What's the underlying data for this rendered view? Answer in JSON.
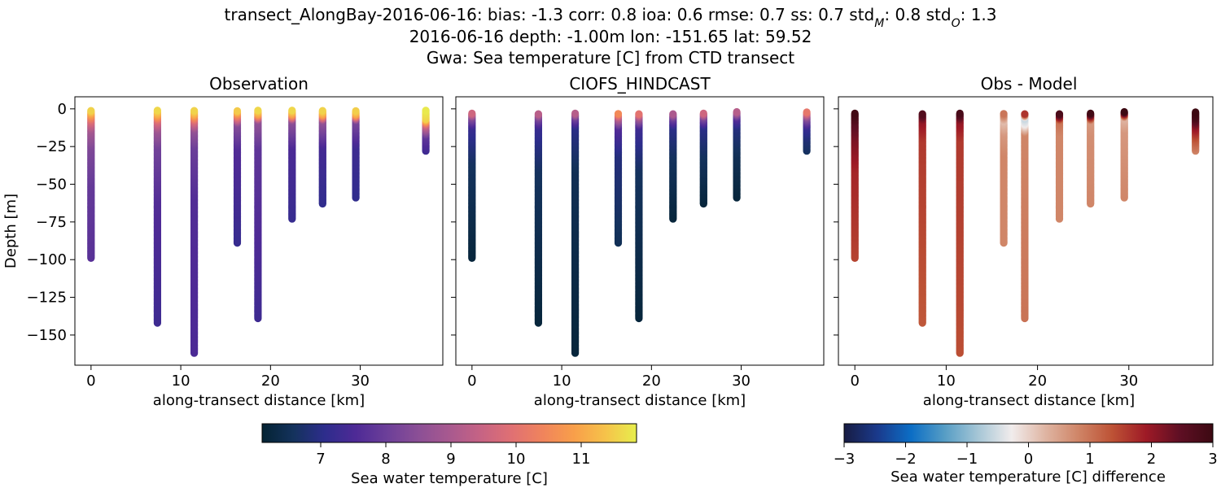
{
  "title": {
    "line1_main": "transect_AlongBay-2016-06-16: bias: -1.3  corr: 0.8  ioa: 0.6  rmse: 0.7  ss: 0.7  std",
    "std_m_sub": "M",
    "line1_mid": ": 0.8  std",
    "std_o_sub": "O",
    "line1_end": ": 1.3",
    "line2": "2016-06-16 depth: -1.00m lon: -151.65 lat: 59.52",
    "line3": "Gwa: Sea temperature [C] from CTD transect"
  },
  "colors": {
    "thermal": [
      "#042333",
      "#14325c",
      "#2d2d8c",
      "#4e2a96",
      "#6c3f99",
      "#8b4f96",
      "#a8598f",
      "#c66384",
      "#e07073",
      "#f0845c",
      "#f89f4a",
      "#f6c24a",
      "#e7ee4d"
    ],
    "balance": [
      "#181c43",
      "#1a3a8c",
      "#0c6ec5",
      "#569dc5",
      "#a6c6d6",
      "#f1ecec",
      "#dfb5a3",
      "#cf8466",
      "#bd5235",
      "#9e1a26",
      "#5f0f24",
      "#3c0912"
    ]
  },
  "chart_data": [
    {
      "type": "scatter",
      "panel": "Observation",
      "title": "Observation",
      "xlabel": "along-transect distance [km]",
      "ylabel": "Depth [m]",
      "xlim": [
        -1.8,
        39.2
      ],
      "ylim": [
        -170,
        8
      ],
      "xticks": [
        0,
        10,
        20,
        30
      ],
      "yticks": [
        0,
        -25,
        -50,
        -75,
        -100,
        -125,
        -150
      ],
      "colormap": "thermal",
      "clim": [
        6.1,
        11.85
      ],
      "profiles": [
        {
          "x": 0.0,
          "top": -1,
          "bottom": -99,
          "profile": [
            [
              -1,
              11.6
            ],
            [
              -4,
              10.8
            ],
            [
              -8,
              9.8
            ],
            [
              -14,
              8.9
            ],
            [
              -25,
              8.3
            ],
            [
              -50,
              7.9
            ],
            [
              -99,
              7.7
            ]
          ]
        },
        {
          "x": 7.4,
          "top": -1,
          "bottom": -142,
          "profile": [
            [
              -1,
              11.6
            ],
            [
              -4,
              11.0
            ],
            [
              -8,
              9.8
            ],
            [
              -14,
              8.8
            ],
            [
              -25,
              8.1
            ],
            [
              -60,
              7.6
            ],
            [
              -142,
              7.3
            ]
          ]
        },
        {
          "x": 11.5,
          "top": -1,
          "bottom": -162,
          "profile": [
            [
              -1,
              11.6
            ],
            [
              -4,
              11.0
            ],
            [
              -8,
              9.8
            ],
            [
              -14,
              8.6
            ],
            [
              -25,
              8.0
            ],
            [
              -60,
              7.6
            ],
            [
              -162,
              7.5
            ]
          ]
        },
        {
          "x": 16.3,
          "top": -1,
          "bottom": -89,
          "profile": [
            [
              -1,
              11.6
            ],
            [
              -4,
              10.5
            ],
            [
              -10,
              8.4
            ],
            [
              -25,
              7.6
            ],
            [
              -89,
              7.2
            ]
          ]
        },
        {
          "x": 18.6,
          "top": -1,
          "bottom": -139,
          "profile": [
            [
              -1,
              11.6
            ],
            [
              -4,
              10.8
            ],
            [
              -8,
              8.6
            ],
            [
              -25,
              7.8
            ],
            [
              -139,
              7.3
            ]
          ]
        },
        {
          "x": 22.4,
          "top": -1,
          "bottom": -73,
          "profile": [
            [
              -1,
              11.6
            ],
            [
              -4,
              10.8
            ],
            [
              -8,
              8.5
            ],
            [
              -25,
              7.5
            ],
            [
              -73,
              7.2
            ]
          ]
        },
        {
          "x": 25.8,
          "top": -1,
          "bottom": -63,
          "profile": [
            [
              -1,
              11.6
            ],
            [
              -4,
              10.9
            ],
            [
              -8,
              8.6
            ],
            [
              -25,
              7.4
            ],
            [
              -63,
              7.1
            ]
          ]
        },
        {
          "x": 29.5,
          "top": -1,
          "bottom": -59,
          "profile": [
            [
              -1,
              11.6
            ],
            [
              -4,
              10.9
            ],
            [
              -8,
              8.2
            ],
            [
              -25,
              7.3
            ],
            [
              -59,
              7.1
            ]
          ]
        },
        {
          "x": 37.3,
          "top": -1,
          "bottom": -28,
          "profile": [
            [
              -1,
              11.8
            ],
            [
              -7,
              11.5
            ],
            [
              -11,
              9.5
            ],
            [
              -18,
              7.8
            ],
            [
              -28,
              7.3
            ]
          ]
        }
      ]
    },
    {
      "type": "scatter",
      "panel": "CIOFS_HINDCAST",
      "title": "CIOFS_HINDCAST",
      "xlabel": "along-transect distance [km]",
      "ylabel": "",
      "xlim": [
        -1.8,
        39.2
      ],
      "ylim": [
        -170,
        8
      ],
      "xticks": [
        0,
        10,
        20,
        30
      ],
      "yticks": [
        0,
        -25,
        -50,
        -75,
        -100,
        -125,
        -150
      ],
      "colormap": "thermal",
      "clim": [
        6.1,
        11.85
      ],
      "profiles": [
        {
          "x": 0.0,
          "top": -3,
          "bottom": -99,
          "profile": [
            [
              -3,
              9.6
            ],
            [
              -6,
              8.3
            ],
            [
              -12,
              7.2
            ],
            [
              -35,
              6.6
            ],
            [
              -99,
              6.2
            ]
          ]
        },
        {
          "x": 7.4,
          "top": -3,
          "bottom": -142,
          "profile": [
            [
              -3,
              9.4
            ],
            [
              -6,
              8.2
            ],
            [
              -12,
              7.2
            ],
            [
              -40,
              6.6
            ],
            [
              -142,
              6.2
            ]
          ]
        },
        {
          "x": 11.5,
          "top": -3,
          "bottom": -162,
          "profile": [
            [
              -3,
              9.2
            ],
            [
              -6,
              8.0
            ],
            [
              -12,
              7.0
            ],
            [
              -40,
              6.5
            ],
            [
              -162,
              6.2
            ]
          ]
        },
        {
          "x": 16.3,
          "top": -3,
          "bottom": -89,
          "profile": [
            [
              -3,
              10.6
            ],
            [
              -6,
              9.2
            ],
            [
              -12,
              7.6
            ],
            [
              -30,
              6.9
            ],
            [
              -89,
              6.5
            ]
          ]
        },
        {
          "x": 18.6,
          "top": -3,
          "bottom": -139,
          "profile": [
            [
              -3,
              10.2
            ],
            [
              -6,
              8.8
            ],
            [
              -12,
              7.3
            ],
            [
              -40,
              6.6
            ],
            [
              -139,
              6.2
            ]
          ]
        },
        {
          "x": 22.4,
          "top": -3,
          "bottom": -73,
          "profile": [
            [
              -3,
              9.2
            ],
            [
              -6,
              8.0
            ],
            [
              -12,
              7.0
            ],
            [
              -30,
              6.6
            ],
            [
              -73,
              6.2
            ]
          ]
        },
        {
          "x": 25.8,
          "top": -3,
          "bottom": -63,
          "profile": [
            [
              -3,
              9.6
            ],
            [
              -6,
              8.2
            ],
            [
              -12,
              7.0
            ],
            [
              -30,
              6.6
            ],
            [
              -63,
              6.2
            ]
          ]
        },
        {
          "x": 29.5,
          "top": -2,
          "bottom": -59,
          "profile": [
            [
              -2,
              9.2
            ],
            [
              -6,
              7.6
            ],
            [
              -12,
              6.9
            ],
            [
              -30,
              6.5
            ],
            [
              -59,
              6.2
            ]
          ]
        },
        {
          "x": 37.3,
          "top": -2,
          "bottom": -28,
          "profile": [
            [
              -2,
              10.2
            ],
            [
              -6,
              8.4
            ],
            [
              -12,
              7.2
            ],
            [
              -20,
              6.8
            ],
            [
              -28,
              6.6
            ]
          ]
        }
      ]
    },
    {
      "type": "scatter",
      "panel": "Obs - Model",
      "title": "Obs - Model",
      "xlabel": "along-transect distance [km]",
      "ylabel": "",
      "xlim": [
        -1.8,
        39.2
      ],
      "ylim": [
        -170,
        8
      ],
      "xticks": [
        0,
        10,
        20,
        30
      ],
      "yticks": [
        0,
        -25,
        -50,
        -75,
        -100,
        -125,
        -150
      ],
      "colormap": "balance",
      "clim": [
        -3,
        3
      ],
      "profiles": [
        {
          "x": 0.0,
          "top": -3,
          "bottom": -99,
          "profile": [
            [
              -3,
              2.9
            ],
            [
              -10,
              2.5
            ],
            [
              -20,
              2.2
            ],
            [
              -40,
              1.8
            ],
            [
              -99,
              1.5
            ]
          ]
        },
        {
          "x": 7.4,
          "top": -3,
          "bottom": -142,
          "profile": [
            [
              -3,
              2.7
            ],
            [
              -8,
              2.0
            ],
            [
              -20,
              1.6
            ],
            [
              -142,
              1.3
            ]
          ]
        },
        {
          "x": 11.5,
          "top": -3,
          "bottom": -162,
          "profile": [
            [
              -3,
              2.8
            ],
            [
              -8,
              2.0
            ],
            [
              -20,
              1.6
            ],
            [
              -162,
              1.4
            ]
          ]
        },
        {
          "x": 16.3,
          "top": -3,
          "bottom": -89,
          "profile": [
            [
              -3,
              1.0
            ],
            [
              -8,
              0.2
            ],
            [
              -16,
              0.6
            ],
            [
              -30,
              0.8
            ],
            [
              -89,
              0.8
            ]
          ]
        },
        {
          "x": 18.6,
          "top": -3,
          "bottom": -139,
          "profile": [
            [
              -3,
              2.0
            ],
            [
              -6,
              -0.6
            ],
            [
              -10,
              -0.3
            ],
            [
              -16,
              0.8
            ],
            [
              -139,
              1.0
            ]
          ]
        },
        {
          "x": 22.4,
          "top": -3,
          "bottom": -73,
          "profile": [
            [
              -3,
              2.9
            ],
            [
              -8,
              1.0
            ],
            [
              -16,
              0.8
            ],
            [
              -73,
              0.8
            ]
          ]
        },
        {
          "x": 25.8,
          "top": -3,
          "bottom": -63,
          "profile": [
            [
              -3,
              2.9
            ],
            [
              -8,
              0.6
            ],
            [
              -16,
              0.7
            ],
            [
              -63,
              0.8
            ]
          ]
        },
        {
          "x": 29.5,
          "top": -2,
          "bottom": -59,
          "profile": [
            [
              -2,
              3.0
            ],
            [
              -6,
              0.3
            ],
            [
              -14,
              0.6
            ],
            [
              -59,
              0.8
            ]
          ]
        },
        {
          "x": 37.3,
          "top": -2,
          "bottom": -28,
          "profile": [
            [
              -2,
              3.0
            ],
            [
              -6,
              2.8
            ],
            [
              -12,
              2.0
            ],
            [
              -20,
              1.3
            ],
            [
              -28,
              0.8
            ]
          ]
        }
      ]
    }
  ],
  "colorbars": [
    {
      "label": "Sea water temperature [C]",
      "colormap": "thermal",
      "clim": [
        6.1,
        11.85
      ],
      "ticks": [
        7,
        8,
        9,
        10,
        11
      ]
    },
    {
      "label": "Sea water temperature [C] difference",
      "colormap": "balance",
      "clim": [
        -3,
        3
      ],
      "ticks": [
        -3,
        -2,
        -1,
        0,
        1,
        2,
        3
      ]
    }
  ]
}
